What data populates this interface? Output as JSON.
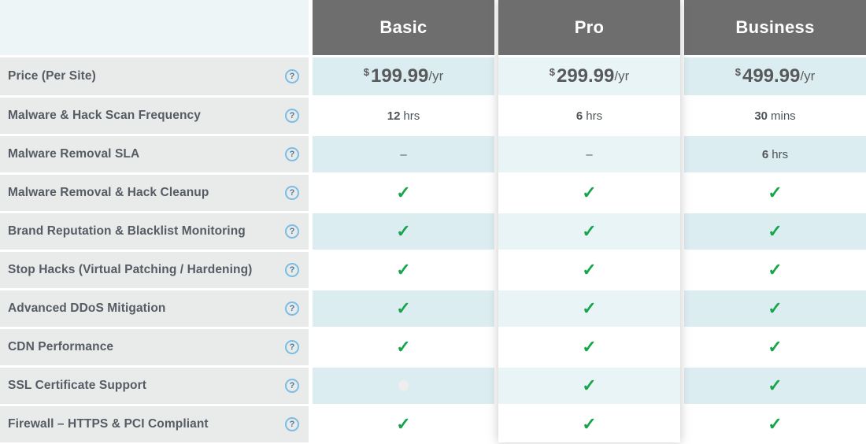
{
  "table": {
    "help_glyph": "?",
    "check_glyph": "✓",
    "dash_glyph": "–",
    "currency": "$",
    "period": "/yr",
    "price_label": "Price (Per Site)",
    "colors": {
      "header_bg": "#6e6e6e",
      "feature_cell_bg": "#e9eaea",
      "tint_side": "#dcedf1",
      "tint_pro": "#e9f4f7",
      "check_green": "#17a54b",
      "help_blue": "#7bbde4"
    },
    "plans": [
      {
        "name": "Basic",
        "price": "199.99"
      },
      {
        "name": "Pro",
        "price": "299.99"
      },
      {
        "name": "Business",
        "price": "499.99"
      }
    ],
    "rows": [
      {
        "label": "Malware & Hack Scan Frequency",
        "cells": [
          {
            "t": "value",
            "num": "12",
            "unit": "hrs"
          },
          {
            "t": "value",
            "num": "6",
            "unit": "hrs"
          },
          {
            "t": "value",
            "num": "30",
            "unit": "mins"
          }
        ]
      },
      {
        "label": "Malware Removal SLA",
        "cells": [
          {
            "t": "dash"
          },
          {
            "t": "dash"
          },
          {
            "t": "value",
            "num": "6",
            "unit": "hrs"
          }
        ]
      },
      {
        "label": "Malware Removal & Hack Cleanup",
        "cells": [
          {
            "t": "check"
          },
          {
            "t": "check"
          },
          {
            "t": "check"
          }
        ]
      },
      {
        "label": "Brand Reputation & Blacklist Monitoring",
        "cells": [
          {
            "t": "check"
          },
          {
            "t": "check"
          },
          {
            "t": "check"
          }
        ]
      },
      {
        "label": "Stop Hacks (Virtual Patching / Hardening)",
        "cells": [
          {
            "t": "check"
          },
          {
            "t": "check"
          },
          {
            "t": "check"
          }
        ]
      },
      {
        "label": "Advanced DDoS Mitigation",
        "cells": [
          {
            "t": "check"
          },
          {
            "t": "check"
          },
          {
            "t": "check"
          }
        ]
      },
      {
        "label": "CDN Performance",
        "cells": [
          {
            "t": "check"
          },
          {
            "t": "check"
          },
          {
            "t": "check"
          }
        ]
      },
      {
        "label": "SSL Certificate Support",
        "cells": [
          {
            "t": "faint"
          },
          {
            "t": "check"
          },
          {
            "t": "check"
          }
        ]
      },
      {
        "label": "Firewall – HTTPS & PCI Compliant",
        "cells": [
          {
            "t": "check"
          },
          {
            "t": "check"
          },
          {
            "t": "check"
          }
        ]
      }
    ]
  }
}
